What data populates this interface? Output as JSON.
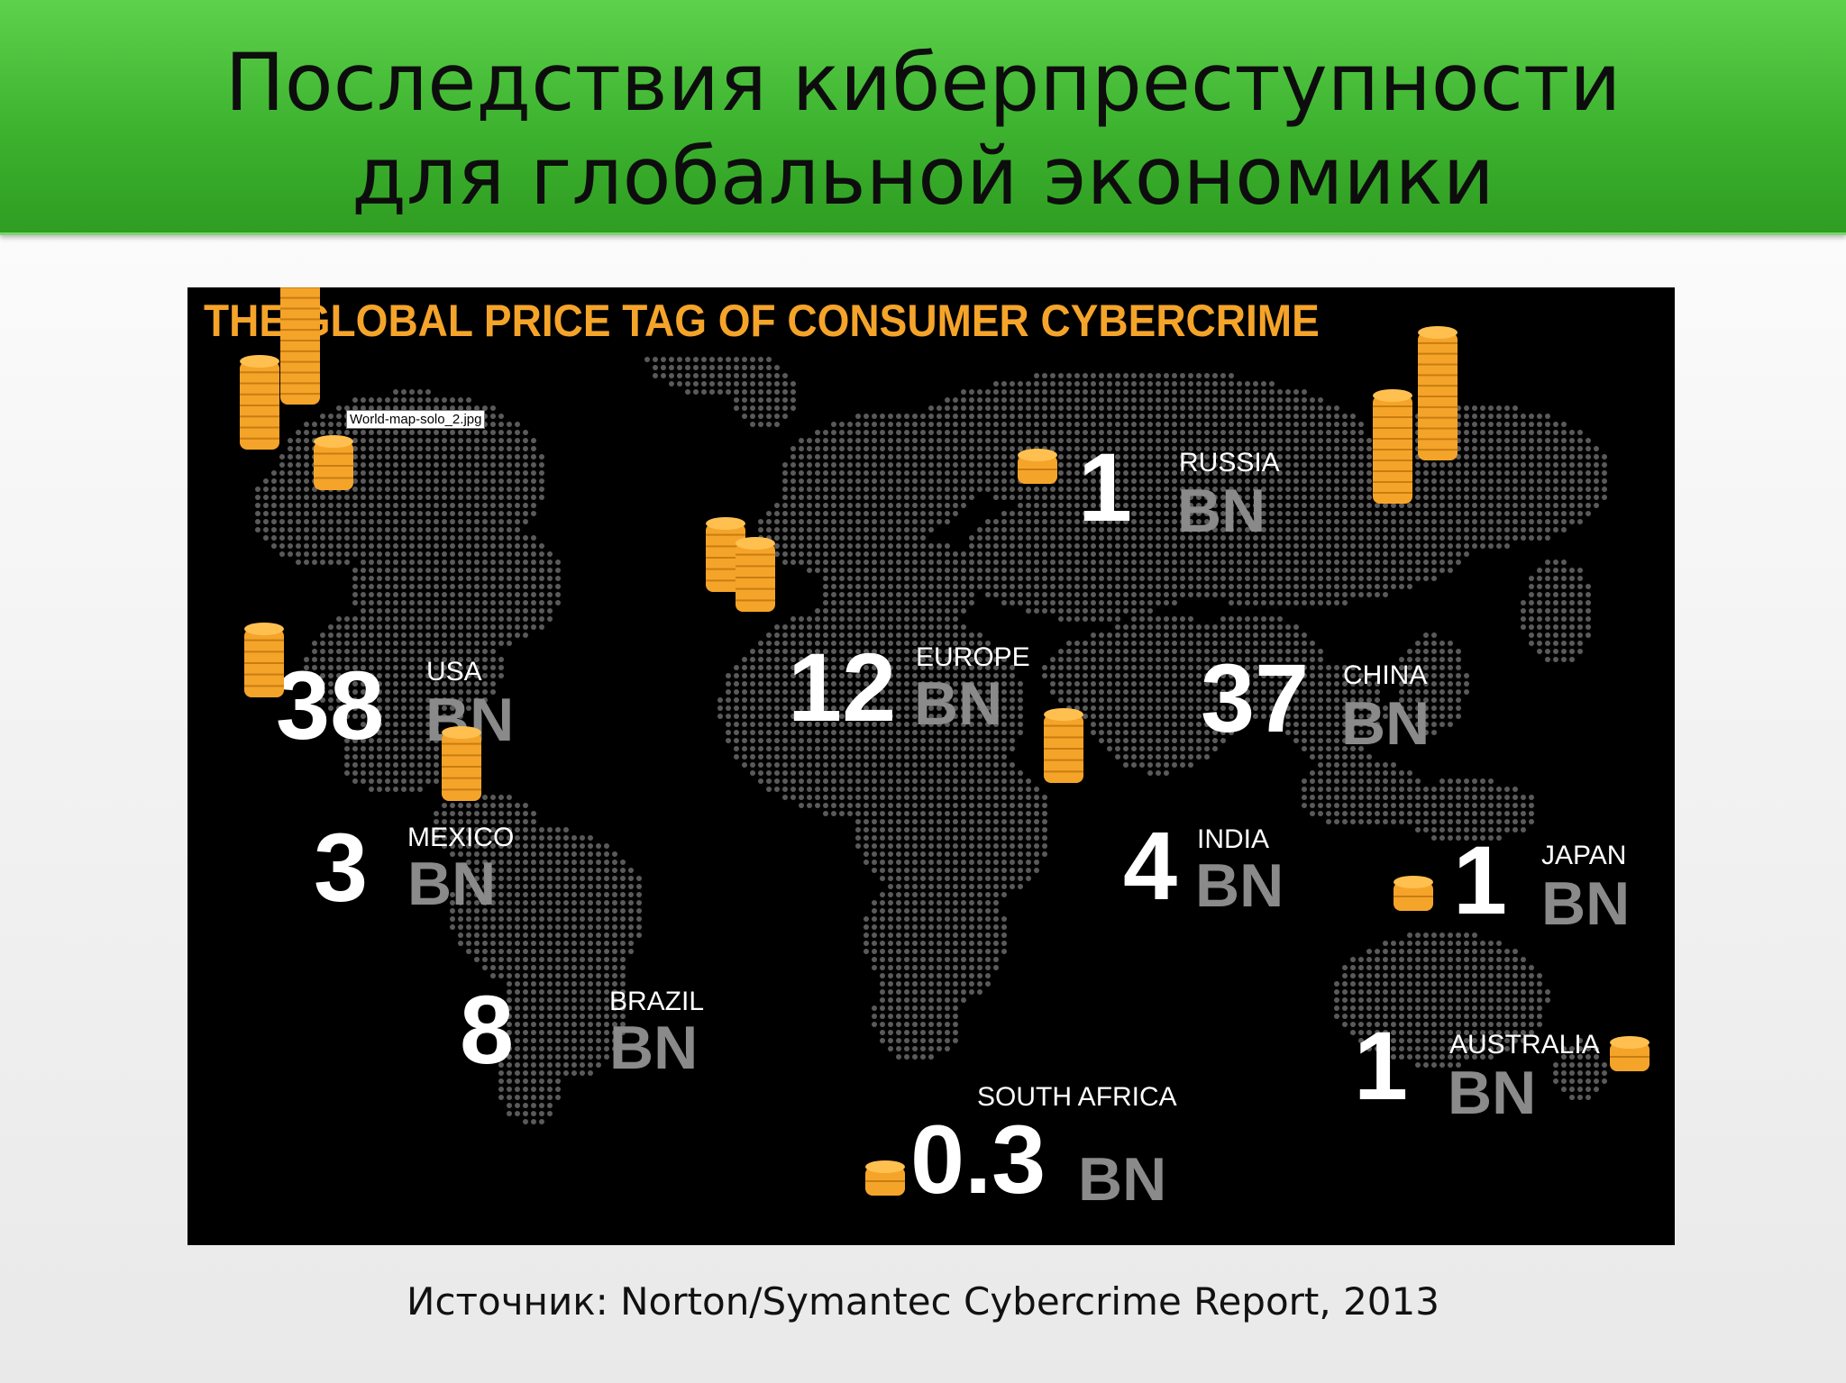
{
  "slide": {
    "title_line1": "Последствия киберпреступности",
    "title_line2": "для глобальной экономики",
    "source": "Источник: Norton/Symantec Cybercrime Report, 2013"
  },
  "infographic": {
    "title": "THE GLOBAL PRICE TAG OF CONSUMER CYBERCRIME",
    "tooltip": "World-map-solo_2.jpg",
    "accent_color": "#f5a42a",
    "unit": "BN",
    "regions": {
      "usa": {
        "name": "USA",
        "amount": "38"
      },
      "mexico": {
        "name": "MEXICO",
        "amount": "3"
      },
      "brazil": {
        "name": "BRAZIL",
        "amount": "8"
      },
      "europe": {
        "name": "EUROPE",
        "amount": "12"
      },
      "russia": {
        "name": "RUSSIA",
        "amount": "1"
      },
      "china": {
        "name": "CHINA",
        "amount": "37"
      },
      "india": {
        "name": "INDIA",
        "amount": "4"
      },
      "japan": {
        "name": "JAPAN",
        "amount": "1"
      },
      "australia": {
        "name": "AUSTRALIA",
        "amount": "1"
      },
      "south_africa": {
        "name": "SOUTH AFRICA",
        "amount": "0.3"
      }
    }
  }
}
